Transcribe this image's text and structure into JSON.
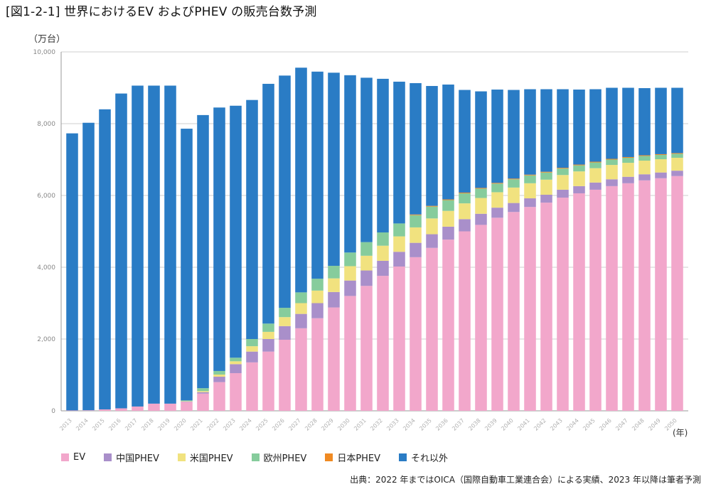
{
  "title": "[図1-2-1] 世界におけるEV およびPHEV の販売台数予測",
  "unit": "（万台）",
  "year_label": "(年)",
  "source": "出典：2022 年まではOICA（国際自動車工業連合会）による実績、2023 年以降は筆者予測",
  "chart_data": {
    "type": "bar",
    "stacked": true,
    "title": "[図1-2-1] 世界におけるEV およびPHEV の販売台数予測",
    "ylabel": "（万台）",
    "xlabel": "(年)",
    "ylim": [
      0,
      10000
    ],
    "yticks": [
      0,
      2000,
      4000,
      6000,
      8000,
      10000
    ],
    "ytick_labels": [
      "0",
      "2,000",
      "4,000",
      "6,000",
      "8,000",
      "10,000"
    ],
    "grid": true,
    "legend_position": "bottom",
    "categories": [
      "2013",
      "2014",
      "2015",
      "2016",
      "2017",
      "2018",
      "2019",
      "2020",
      "2021",
      "2022",
      "2023",
      "2024",
      "2025",
      "2026",
      "2027",
      "2028",
      "2029",
      "2030",
      "2031",
      "2032",
      "2033",
      "2034",
      "2035",
      "2036",
      "2037",
      "2038",
      "2039",
      "2040",
      "2041",
      "2042",
      "2043",
      "2044",
      "2045",
      "2046",
      "2047",
      "2048",
      "2049",
      "2050"
    ],
    "series": [
      {
        "name": "EV",
        "color": "#f2a7cb",
        "values": [
          10,
          15,
          40,
          70,
          120,
          200,
          200,
          250,
          480,
          800,
          1050,
          1350,
          1650,
          1980,
          2300,
          2580,
          2880,
          3200,
          3480,
          3760,
          4020,
          4280,
          4540,
          4770,
          5000,
          5180,
          5380,
          5540,
          5680,
          5800,
          5940,
          6060,
          6160,
          6260,
          6340,
          6420,
          6480,
          6540
        ]
      },
      {
        "name": "中国PHEV",
        "color": "#a98fca",
        "values": [
          0,
          0,
          0,
          0,
          0,
          0,
          0,
          10,
          40,
          150,
          250,
          300,
          350,
          380,
          400,
          420,
          430,
          430,
          430,
          420,
          410,
          400,
          380,
          360,
          340,
          310,
          280,
          250,
          240,
          220,
          220,
          200,
          200,
          190,
          180,
          170,
          160,
          150
        ]
      },
      {
        "name": "米国PHEV",
        "color": "#f1e27f",
        "values": [
          0,
          0,
          0,
          0,
          0,
          0,
          0,
          10,
          30,
          60,
          80,
          150,
          200,
          250,
          300,
          350,
          380,
          400,
          410,
          420,
          430,
          430,
          440,
          440,
          440,
          440,
          430,
          430,
          420,
          420,
          410,
          410,
          400,
          400,
          390,
          380,
          370,
          360
        ]
      },
      {
        "name": "欧州PHEV",
        "color": "#86cc9c",
        "values": [
          0,
          0,
          0,
          0,
          0,
          0,
          0,
          20,
          80,
          100,
          100,
          200,
          230,
          260,
          300,
          330,
          350,
          380,
          380,
          370,
          360,
          340,
          330,
          300,
          280,
          260,
          240,
          230,
          220,
          200,
          180,
          170,
          160,
          150,
          140,
          130,
          120,
          110
        ]
      },
      {
        "name": "日本PHEV",
        "color": "#f08a22",
        "values": [
          0,
          0,
          0,
          0,
          0,
          0,
          0,
          0,
          0,
          0,
          0,
          0,
          0,
          0,
          0,
          0,
          0,
          0,
          0,
          0,
          0,
          20,
          20,
          20,
          20,
          20,
          20,
          20,
          20,
          20,
          20,
          20,
          20,
          20,
          20,
          20,
          20,
          20
        ]
      },
      {
        "name": "それ以外",
        "color": "#2a7cc5",
        "values": [
          7720,
          8010,
          8360,
          8770,
          8940,
          8860,
          8860,
          7570,
          7610,
          7340,
          7020,
          6660,
          6680,
          6470,
          6260,
          5770,
          5380,
          4940,
          4580,
          4280,
          3950,
          3660,
          3340,
          3200,
          2860,
          2690,
          2600,
          2470,
          2380,
          2300,
          2190,
          2090,
          2020,
          1980,
          1930,
          1870,
          1850,
          1820
        ]
      }
    ]
  }
}
